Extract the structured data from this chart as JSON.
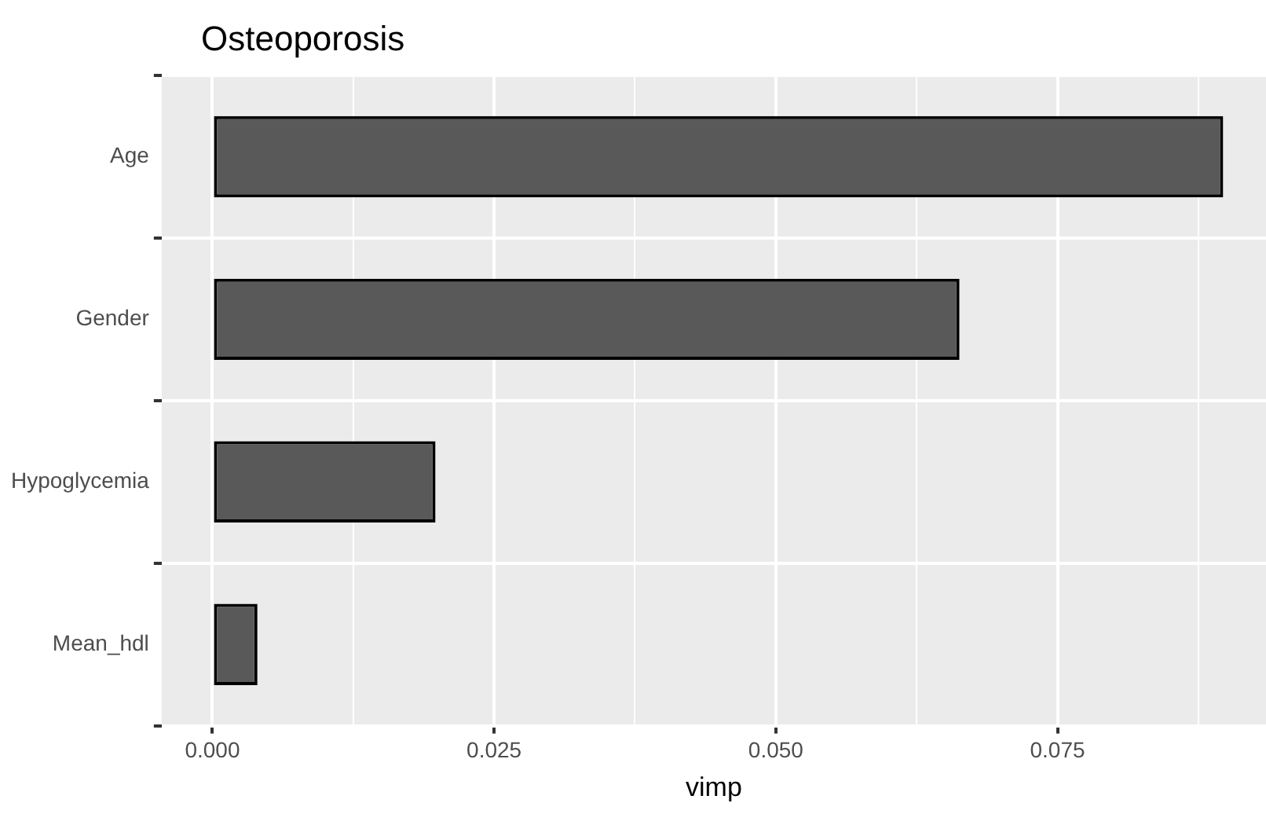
{
  "chart_data": {
    "type": "bar",
    "orientation": "horizontal",
    "title": "Osteoporosis",
    "xlabel": "vimp",
    "categories": [
      "Age",
      "Gender",
      "Hypoglycemia",
      "Mean_hdl"
    ],
    "values": [
      0.0897,
      0.0663,
      0.0198,
      0.004
    ],
    "color": "#595959",
    "xlim": [
      -0.0045,
      0.0935
    ],
    "xticks": [
      {
        "value": 0,
        "label": "0.000"
      },
      {
        "value": 0.0125,
        "label": null
      },
      {
        "value": 0.025,
        "label": "0.025"
      },
      {
        "value": 0.0375,
        "label": null
      },
      {
        "value": 0.05,
        "label": "0.050"
      },
      {
        "value": 0.0625,
        "label": null
      },
      {
        "value": 0.075,
        "label": "0.075"
      },
      {
        "value": 0.0875,
        "label": null
      }
    ],
    "grid": true,
    "legend": false
  }
}
